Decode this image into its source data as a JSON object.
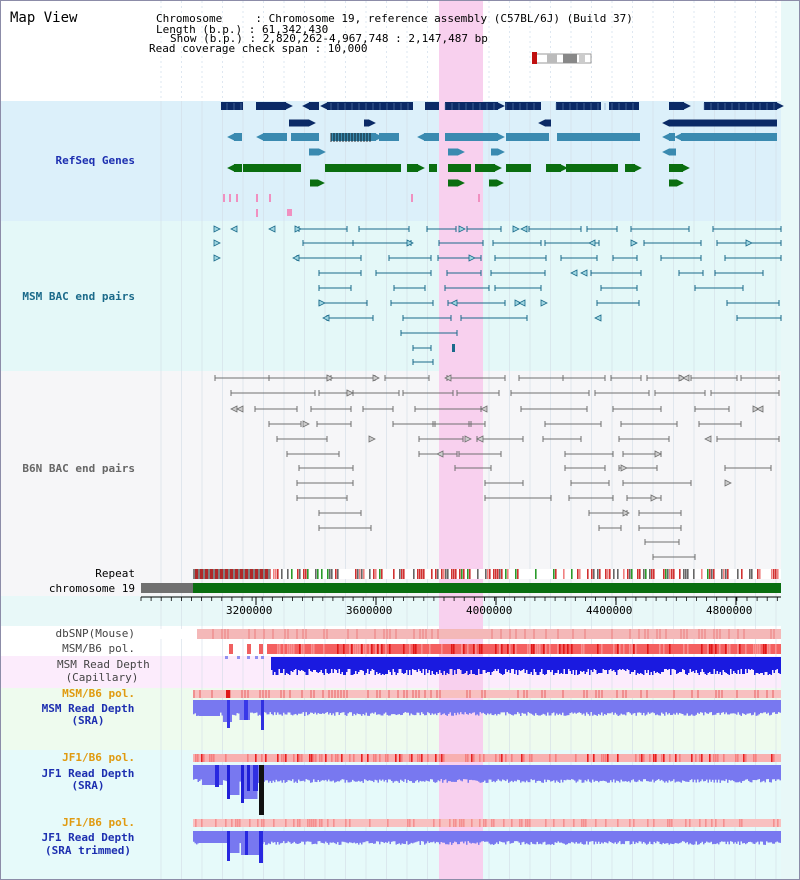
{
  "title": "Map View",
  "info": {
    "chromosome": "Chromosome     : Chromosome 19, reference assembly (C57BL/6J) (Build 37)",
    "length": "Length (b.p.) : 61,342,430",
    "show": "Show (b.p.) : 2,820,262-4,967,748 : 2,147,487 bp",
    "coverage": "Read coverage check span : 10,000"
  },
  "tracks": {
    "refseq": "RefSeq Genes",
    "msm_bac": "MSM BAC end pairs",
    "b6n_bac": "B6N BAC end pairs",
    "repeat": "Repeat",
    "chromosome": "chromosome 19",
    "dbsnp": "dbSNP(Mouse)",
    "msm_b6_pol_1": "MSM/B6 pol.",
    "msm_depth_cap_1": "MSM Read Depth",
    "msm_depth_cap_2": "(Capillary)",
    "msm_b6_pol_2": "MSM/B6 pol.",
    "msm_depth_sra_1": "MSM Read Depth",
    "msm_depth_sra_2": "(SRA)",
    "jf1_b6_pol_1": "JF1/B6 pol.",
    "jf1_depth_sra_1": "JF1 Read Depth",
    "jf1_depth_sra_2": "(SRA)",
    "jf1_b6_pol_2": "JF1/B6 pol.",
    "jf1_depth_trim_1": "JF1 Read Depth",
    "jf1_depth_trim_2": "(SRA trimmed)"
  },
  "axis_ticks": [
    "3200000",
    "3600000",
    "4000000",
    "4400000",
    "4800000"
  ],
  "colors": {
    "refseq_dark": "#0b2a66",
    "refseq_mid": "#3a8ab0",
    "refseq_green": "#0a6e10",
    "msm_bac": "#1a6a8a",
    "b6n_bac": "#707070",
    "highlight": "#f8d0ee",
    "depth_blue": "#1a1ae0",
    "depth_light": "#7878f0",
    "pol_red": "#f06060"
  }
}
